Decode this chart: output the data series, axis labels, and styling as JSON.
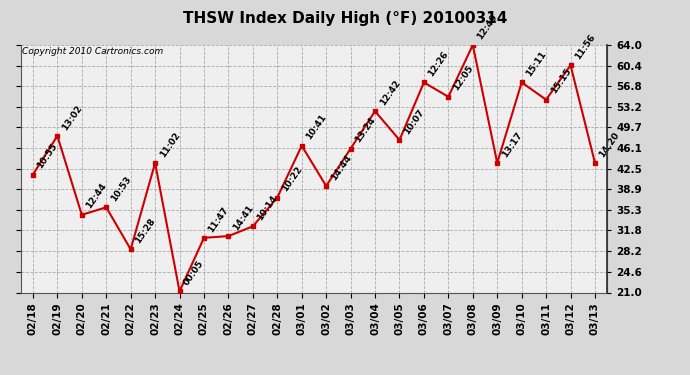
{
  "title": "THSW Index Daily High (°F) 20100314",
  "copyright": "Copyright 2010 Cartronics.com",
  "dates": [
    "02/18",
    "02/19",
    "02/20",
    "02/21",
    "02/22",
    "02/23",
    "02/24",
    "02/25",
    "02/26",
    "02/27",
    "02/28",
    "03/01",
    "03/02",
    "03/03",
    "03/04",
    "03/05",
    "03/06",
    "03/07",
    "03/08",
    "03/09",
    "03/10",
    "03/11",
    "03/12",
    "03/13"
  ],
  "values": [
    41.5,
    48.2,
    34.5,
    35.8,
    28.5,
    43.5,
    21.2,
    30.5,
    30.8,
    32.5,
    37.5,
    46.5,
    39.5,
    46.0,
    52.5,
    47.5,
    57.5,
    55.0,
    64.0,
    43.5,
    57.5,
    54.5,
    60.5,
    43.5
  ],
  "times": [
    "10:55",
    "13:02",
    "12:44",
    "10:53",
    "15:28",
    "11:02",
    "00:05",
    "11:47",
    "14:41",
    "10:14",
    "10:22",
    "10:41",
    "14:44",
    "13:24",
    "12:42",
    "10:07",
    "12:26",
    "12:05",
    "12:49",
    "13:17",
    "15:11",
    "15:15",
    "11:56",
    "14:20"
  ],
  "ylim_min": 21.0,
  "ylim_max": 64.0,
  "yticks": [
    21.0,
    24.6,
    28.2,
    31.8,
    35.3,
    38.9,
    42.5,
    46.1,
    49.7,
    53.2,
    56.8,
    60.4,
    64.0
  ],
  "line_color": "#cc0000",
  "bg_color": "#d8d8d8",
  "plot_bg_color": "#efefef",
  "grid_color": "#999999",
  "title_fontsize": 11,
  "annot_fontsize": 6.5,
  "tick_fontsize": 7.5,
  "copyright_fontsize": 6.5
}
